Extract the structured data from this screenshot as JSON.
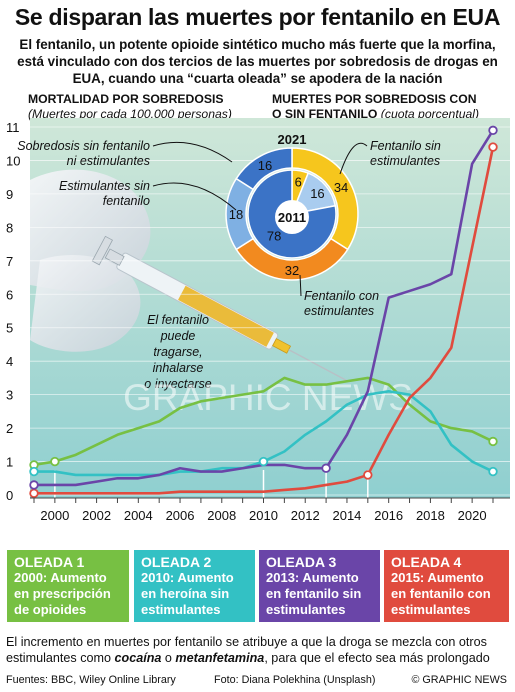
{
  "header": {
    "title": "Se disparan las muertes por fentanilo en EUA",
    "subtitle": "El fentanilo, un potente opioide sintético mucho más fuerte que la morfina, está vinculado con dos tercios de las muertes por sobredosis de drogas en EUA, cuando una “cuarta oleada” se apodera de la nación"
  },
  "left_section": {
    "title": "MORTALIDAD POR SOBREDOSIS",
    "subtitle": "(Muertes por cada 100.000 personas)"
  },
  "right_section": {
    "title_line1": "MUERTES POR SOBREDOSIS CON",
    "title_line2": "O SIN FENTANILO",
    "subtitle": "(cuota porcentual)"
  },
  "photo_caption": [
    "El fentanilo",
    "puede",
    "tragarse,",
    "inhalarse",
    "o inyectarse"
  ],
  "watermark": "GRAPHIC NEWS",
  "colors": {
    "green": "#77c043",
    "cyan": "#33c1c4",
    "purple": "#6a45a8",
    "red": "#e04b3e",
    "donut_yellow": "#f6c61d",
    "donut_orange": "#f28a1f",
    "donut_blue_light": "#7fb0e3",
    "donut_blue_dark": "#3b73c6",
    "donut_blue_pale": "#a9ccef"
  },
  "chart_data": [
    {
      "type": "line",
      "ylim": [
        0,
        11
      ],
      "xlim": [
        1999,
        2021
      ],
      "y_ticks": [
        0,
        1,
        2,
        3,
        4,
        5,
        6,
        7,
        8,
        9,
        10,
        11
      ],
      "x_ticks": [
        2000,
        2002,
        2004,
        2006,
        2008,
        2010,
        2012,
        2014,
        2016,
        2018,
        2020
      ],
      "x": [
        1999,
        2000,
        2001,
        2002,
        2003,
        2004,
        2005,
        2006,
        2007,
        2008,
        2009,
        2010,
        2011,
        2012,
        2013,
        2014,
        2015,
        2016,
        2017,
        2018,
        2019,
        2020,
        2021
      ],
      "series": [
        {
          "key": "green",
          "values": [
            0.9,
            1.0,
            1.2,
            1.5,
            1.8,
            2.0,
            2.2,
            2.6,
            2.8,
            2.9,
            3.0,
            3.1,
            3.5,
            3.3,
            3.3,
            3.4,
            3.5,
            3.3,
            2.7,
            2.2,
            2.0,
            1.9,
            1.6
          ]
        },
        {
          "key": "cyan",
          "values": [
            0.7,
            0.7,
            0.6,
            0.6,
            0.6,
            0.6,
            0.6,
            0.7,
            0.7,
            0.8,
            0.8,
            1.0,
            1.3,
            1.8,
            2.2,
            2.7,
            3.0,
            3.1,
            3.0,
            2.5,
            1.5,
            1.0,
            0.7
          ]
        },
        {
          "key": "purple",
          "values": [
            0.3,
            0.3,
            0.3,
            0.4,
            0.5,
            0.5,
            0.6,
            0.8,
            0.7,
            0.7,
            0.8,
            0.9,
            0.9,
            0.8,
            0.8,
            1.8,
            3.1,
            5.9,
            6.1,
            6.3,
            6.6,
            9.9,
            10.9
          ]
        },
        {
          "key": "red",
          "values": [
            0.05,
            0.05,
            0.05,
            0.05,
            0.05,
            0.05,
            0.05,
            0.1,
            0.1,
            0.1,
            0.1,
            0.1,
            0.15,
            0.2,
            0.3,
            0.4,
            0.6,
            1.8,
            2.9,
            3.5,
            4.4,
            7.4,
            10.4
          ]
        }
      ]
    },
    {
      "type": "pie",
      "variant": "nested-donut",
      "rings": [
        {
          "label": "2021",
          "slices": [
            {
              "name": "Fentanilo sin estimulantes",
              "value": 34
            },
            {
              "name": "Fentanilo con estimulantes",
              "value": 32
            },
            {
              "name": "Estimulantes sin fentanilo",
              "value": 18
            },
            {
              "name": "Sobredosis sin fentanilo ni estimulantes",
              "value": 16
            }
          ]
        },
        {
          "label": "2011",
          "slices": [
            {
              "name": "Fentanilo sin estimulantes",
              "value": 6
            },
            {
              "name": "Estimulantes sin fentanilo",
              "value": 16
            },
            {
              "name": "Sobredosis sin fentanilo ni estimulantes",
              "value": 78
            }
          ]
        }
      ],
      "callouts": [
        {
          "lines": [
            "Sobredosis sin fentanilo",
            "ni estimulantes"
          ]
        },
        {
          "lines": [
            "Estimulantes sin",
            "fentanilo"
          ]
        },
        {
          "lines": [
            "Fentanilo sin",
            "estimulantes"
          ]
        },
        {
          "lines": [
            "Fentanilo con",
            "estimulantes"
          ]
        }
      ]
    }
  ],
  "waves": [
    {
      "title": "OLEADA 1",
      "text": "2000: Aumento en prescripción de opioides",
      "lines": [
        "2000: Aumento",
        "en prescripción",
        "de opioides"
      ],
      "color": "#77c043",
      "year": 2000
    },
    {
      "title": "OLEADA 2",
      "text": "2010: Aumento en heroína sin estimulantes",
      "lines": [
        "2010: Aumento",
        "en heroína sin",
        "estimulantes"
      ],
      "color": "#33c1c4",
      "year": 2010
    },
    {
      "title": "OLEADA 3",
      "text": "2013: Aumento en fentanilo sin estimulantes",
      "lines": [
        "2013: Aumento",
        "en fentanilo sin",
        "estimulantes"
      ],
      "color": "#6a45a8",
      "year": 2013
    },
    {
      "title": "OLEADA 4",
      "text": "2015: Aumento en fentanilo con estimulantes",
      "lines": [
        "2015: Aumento",
        "en fentanilo con",
        "estimulantes"
      ],
      "color": "#e04b3e",
      "year": 2015
    }
  ],
  "footnote": {
    "before": "El incremento en muertes por fentanilo se atribuye a que la droga se mezcla con otros estimulantes como ",
    "word1": "cocaína",
    "middle": " o ",
    "word2": "metanfetamina",
    "after": ", para que el efecto sea más prolongado"
  },
  "footer": {
    "sources": "Fuentes: BBC, Wiley Online Library",
    "photo": "Foto: Diana Polekhina (Unsplash)",
    "credit": "© GRAPHIC NEWS"
  }
}
